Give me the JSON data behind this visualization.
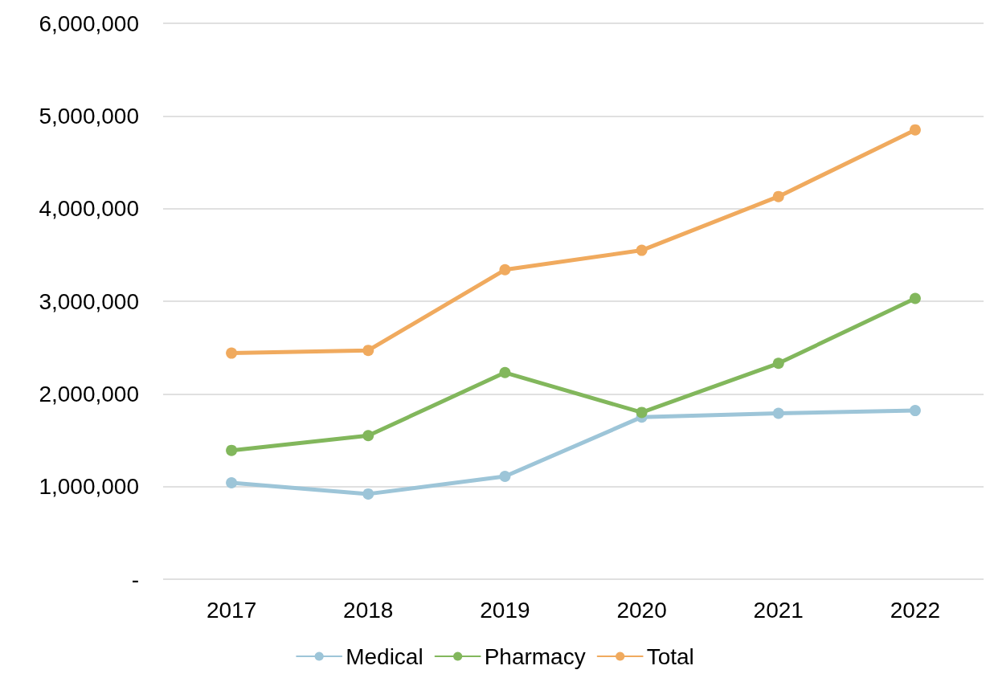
{
  "chart_data": {
    "type": "line",
    "categories": [
      "2017",
      "2018",
      "2019",
      "2020",
      "2021",
      "2022"
    ],
    "series": [
      {
        "name": "Medical",
        "color": "#9dc5d8",
        "values": [
          1040000,
          920000,
          1110000,
          1750000,
          1790000,
          1820000
        ]
      },
      {
        "name": "Pharmacy",
        "color": "#82b75c",
        "values": [
          1390000,
          1550000,
          2230000,
          1800000,
          2330000,
          3030000
        ]
      },
      {
        "name": "Total",
        "color": "#f0aa5e",
        "values": [
          2440000,
          2470000,
          3340000,
          3550000,
          4130000,
          4850000
        ]
      }
    ],
    "ylim": [
      0,
      6000000
    ],
    "yticks": [
      {
        "value": 0,
        "label": "-"
      },
      {
        "value": 1000000,
        "label": "1,000,000"
      },
      {
        "value": 2000000,
        "label": "2,000,000"
      },
      {
        "value": 3000000,
        "label": "3,000,000"
      },
      {
        "value": 4000000,
        "label": "4,000,000"
      },
      {
        "value": 5000000,
        "label": "5,000,000"
      },
      {
        "value": 6000000,
        "label": "6,000,000"
      }
    ],
    "grid": "y",
    "legend": "bottom",
    "marker": "circle",
    "line_style": "solid"
  }
}
